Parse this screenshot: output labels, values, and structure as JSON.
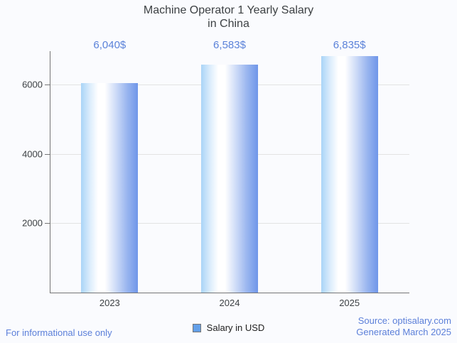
{
  "title": {
    "line1": "Machine Operator 1 Yearly Salary",
    "line2": "in China"
  },
  "chart_data": {
    "type": "bar",
    "title": "Machine Operator 1 Yearly Salary in China",
    "categories": [
      "2023",
      "2024",
      "2025"
    ],
    "series": [
      {
        "name": "Salary in USD",
        "values": [
          6040,
          6583,
          6835
        ]
      }
    ],
    "value_labels": [
      "6,040$",
      "6,583$",
      "6,835$"
    ],
    "xlabel": "",
    "ylabel": "",
    "yticks": [
      2000,
      4000,
      6000
    ],
    "ylim": [
      0,
      6970
    ],
    "grid": true,
    "legend_position": "bottom"
  },
  "legend": {
    "label": "Salary in USD"
  },
  "footer": {
    "left": "For informational use only",
    "source": "Source: optisalary.com",
    "generated": "Generated March 2025"
  },
  "colors": {
    "background": "#fafbfe",
    "title_text": "#3c4043",
    "axis_label_text": "#3c4043",
    "value_label_blue": "#5b82d9",
    "footer_blue": "#5b7fd9",
    "gridline": "#e3e3e3",
    "axis_line": "#757575",
    "legend_swatch": "#63a0e9",
    "bar_gradient_light": "#a9d4f7",
    "bar_gradient_highlight": "#ffffff",
    "bar_gradient_dark": "#6f96e9"
  }
}
